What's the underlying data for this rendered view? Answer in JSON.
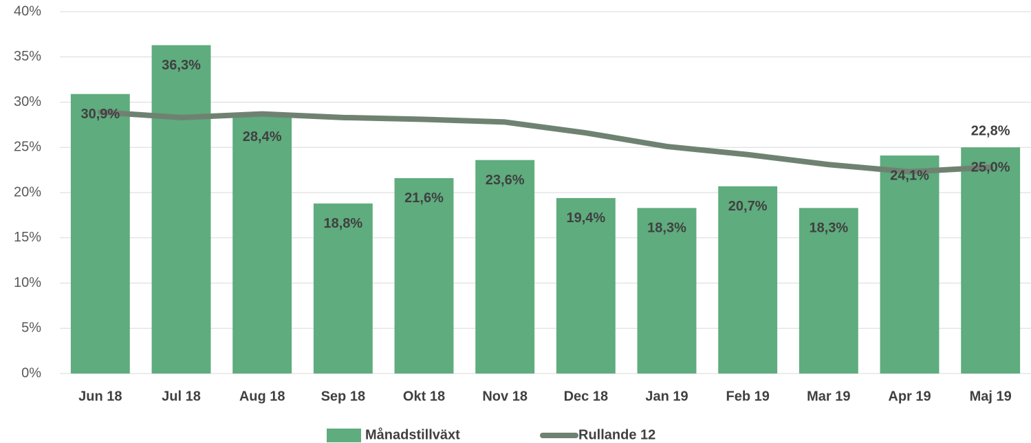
{
  "chart_data": {
    "type": "bar-line",
    "categories": [
      "Jun 18",
      "Jul 18",
      "Aug 18",
      "Sep 18",
      "Okt 18",
      "Nov 18",
      "Dec 18",
      "Jan 19",
      "Feb 19",
      "Mar 19",
      "Apr 19",
      "Maj 19"
    ],
    "series": [
      {
        "name": "Månadstillväxt",
        "type": "bar",
        "color": "#5fac7e",
        "values": [
          30.9,
          36.3,
          28.4,
          18.8,
          21.6,
          23.6,
          19.4,
          18.3,
          20.7,
          18.3,
          24.1,
          25.0
        ],
        "value_labels": [
          "30,9%",
          "36,3%",
          "28,4%",
          "18,8%",
          "21,6%",
          "23,6%",
          "19,4%",
          "18,3%",
          "20,7%",
          "18,3%",
          "24,1%",
          "25,0%"
        ]
      },
      {
        "name": "Rullande 12",
        "type": "line",
        "color": "#6f8272",
        "values": [
          28.9,
          28.3,
          28.7,
          28.3,
          28.1,
          27.8,
          26.6,
          25.1,
          24.2,
          23.1,
          22.3,
          22.8
        ],
        "value_labels": [
          null,
          null,
          null,
          null,
          null,
          null,
          null,
          null,
          null,
          null,
          null,
          "22,8%"
        ]
      }
    ],
    "ylim": [
      0,
      40
    ],
    "yticks": [
      {
        "value": 0,
        "label": "0%"
      },
      {
        "value": 5,
        "label": "5%"
      },
      {
        "value": 10,
        "label": "10%"
      },
      {
        "value": 15,
        "label": "15%"
      },
      {
        "value": 20,
        "label": "20%"
      },
      {
        "value": 25,
        "label": "25%"
      },
      {
        "value": 30,
        "label": "30%"
      },
      {
        "value": 35,
        "label": "35%"
      },
      {
        "value": 40,
        "label": "40%"
      }
    ],
    "grid": true,
    "legend": "bottom"
  }
}
